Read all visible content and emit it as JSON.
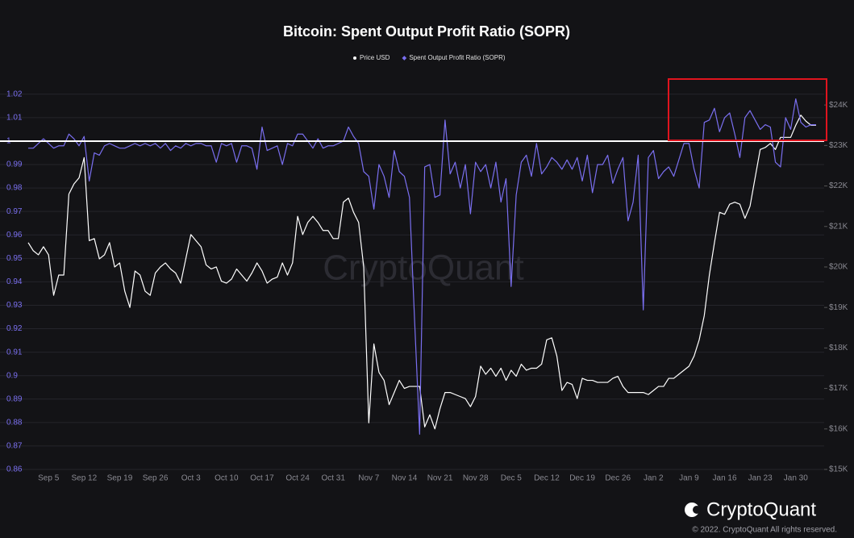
{
  "chart_data": {
    "type": "line",
    "title": "Bitcoin: Spent Output Profit Ratio (SOPR)",
    "watermark": "CryptoQuant",
    "brand": "CryptoQuant",
    "copyright": "© 2022. CryptoQuant All rights reserved.",
    "categories": [
      null,
      null,
      null,
      null,
      "Sep 5",
      null,
      null,
      null,
      null,
      null,
      null,
      "Sep 12",
      null,
      null,
      null,
      null,
      null,
      null,
      "Sep 19",
      null,
      null,
      null,
      null,
      null,
      null,
      "Sep 26",
      null,
      null,
      null,
      null,
      null,
      null,
      "Oct 3",
      null,
      null,
      null,
      null,
      null,
      null,
      "Oct 10",
      null,
      null,
      null,
      null,
      null,
      null,
      "Oct 17",
      null,
      null,
      null,
      null,
      null,
      null,
      "Oct 24",
      null,
      null,
      null,
      null,
      null,
      null,
      "Oct 31",
      null,
      null,
      null,
      null,
      null,
      null,
      "Nov 7",
      null,
      null,
      null,
      null,
      null,
      null,
      "Nov 14",
      null,
      null,
      null,
      null,
      null,
      null,
      "Nov 21",
      null,
      null,
      null,
      null,
      null,
      null,
      "Nov 28",
      null,
      null,
      null,
      null,
      null,
      null,
      "Dec 5",
      null,
      null,
      null,
      null,
      null,
      null,
      "Dec 12",
      null,
      null,
      null,
      null,
      null,
      null,
      "Dec 19",
      null,
      null,
      null,
      null,
      null,
      null,
      "Dec 26",
      null,
      null,
      null,
      null,
      null,
      null,
      "Jan 2",
      null,
      null,
      null,
      null,
      null,
      null,
      "Jan 9",
      null,
      null,
      null,
      null,
      null,
      null,
      "Jan 16",
      null,
      null,
      null,
      null,
      null,
      null,
      "Jan 23",
      null,
      null,
      null,
      null,
      null,
      null,
      "Jan 30",
      null,
      null,
      null,
      null
    ],
    "series": [
      {
        "name": "Price USD",
        "color": "#ffffff",
        "axis": "y2",
        "values": [
          20600,
          20400,
          20300,
          20500,
          20300,
          19300,
          19800,
          19800,
          21800,
          22050,
          22200,
          22700,
          20650,
          20700,
          20200,
          20300,
          20600,
          20000,
          20100,
          19400,
          19000,
          19900,
          19800,
          19400,
          19300,
          19850,
          20000,
          20100,
          19950,
          19850,
          19600,
          20200,
          20800,
          20650,
          20500,
          20050,
          19950,
          20000,
          19650,
          19600,
          19700,
          19950,
          19800,
          19650,
          19850,
          20100,
          19900,
          19600,
          19700,
          19750,
          20100,
          19800,
          20100,
          21250,
          20800,
          21100,
          21250,
          21100,
          20900,
          20900,
          20700,
          20700,
          21600,
          21700,
          21350,
          21100,
          20000,
          16150,
          18100,
          17400,
          17200,
          16600,
          16900,
          17200,
          17000,
          17050,
          17050,
          17050,
          16050,
          16350,
          16000,
          16500,
          16900,
          16900,
          16850,
          16800,
          16750,
          16550,
          16800,
          17550,
          17350,
          17500,
          17300,
          17500,
          17200,
          17450,
          17300,
          17600,
          17450,
          17500,
          17500,
          17600,
          18200,
          18250,
          17800,
          16950,
          17150,
          17100,
          16750,
          17250,
          17200,
          17200,
          17150,
          17150,
          17150,
          17250,
          17300,
          17050,
          16900,
          16900,
          16900,
          16900,
          16850,
          16950,
          17050,
          17050,
          17250,
          17250,
          17350,
          17450,
          17550,
          17800,
          18200,
          18800,
          19800,
          20600,
          21350,
          21300,
          21550,
          21600,
          21550,
          21200,
          21500,
          22200,
          22900,
          22950,
          23050,
          22900,
          23200,
          23200,
          23200,
          23500,
          23750,
          23600,
          23500,
          23500
        ]
      },
      {
        "name": "Spent Output Profit Ratio (SOPR)",
        "color": "#7a6ff0",
        "values": [
          0.997,
          0.997,
          0.999,
          1.001,
          0.999,
          0.997,
          0.998,
          0.998,
          1.003,
          1.001,
          0.998,
          1.002,
          0.983,
          0.995,
          0.994,
          0.998,
          0.999,
          0.998,
          0.997,
          0.997,
          0.998,
          0.999,
          0.998,
          0.999,
          0.998,
          0.999,
          0.997,
          0.999,
          0.996,
          0.998,
          0.997,
          0.999,
          0.998,
          0.999,
          0.999,
          0.998,
          0.998,
          0.991,
          0.999,
          0.998,
          0.999,
          0.991,
          0.998,
          0.998,
          0.997,
          0.988,
          1.006,
          0.996,
          0.997,
          0.998,
          0.99,
          0.999,
          0.998,
          1.003,
          1.003,
          1.0,
          0.997,
          1.001,
          0.997,
          0.998,
          0.998,
          0.999,
          1.0,
          1.006,
          1.002,
          0.999,
          0.987,
          0.985,
          0.971,
          0.99,
          0.985,
          0.976,
          0.996,
          0.987,
          0.985,
          0.976,
          0.924,
          0.875,
          0.989,
          0.99,
          0.976,
          0.977,
          1.009,
          0.986,
          0.991,
          0.98,
          0.99,
          0.969,
          0.991,
          0.987,
          0.99,
          0.98,
          0.991,
          0.974,
          0.984,
          0.938,
          0.977,
          0.991,
          0.994,
          0.985,
          0.999,
          0.986,
          0.989,
          0.993,
          0.991,
          0.988,
          0.992,
          0.988,
          0.993,
          0.983,
          0.994,
          0.978,
          0.99,
          0.99,
          0.994,
          0.982,
          0.988,
          0.993,
          0.966,
          0.974,
          0.994,
          0.928,
          0.993,
          0.996,
          0.984,
          0.987,
          0.989,
          0.985,
          0.992,
          0.999,
          0.999,
          0.988,
          0.98,
          1.008,
          1.009,
          1.014,
          1.004,
          1.01,
          1.012,
          1.003,
          0.993,
          1.01,
          1.013,
          1.009,
          1.005,
          1.007,
          1.006,
          0.991,
          0.989,
          1.01,
          1.005,
          1.018,
          1.008,
          1.006,
          1.007,
          1.007
        ]
      }
    ],
    "hline": 1,
    "ylim": [
      0.86,
      1.0275
    ],
    "yticks": [
      0.86,
      0.87,
      0.88,
      0.89,
      0.9,
      0.91,
      0.92,
      0.93,
      0.94,
      0.95,
      0.96,
      0.97,
      0.98,
      0.99,
      1,
      1.01,
      1.02
    ],
    "y2lim": [
      15000,
      24700
    ],
    "y2ticks": [
      {
        "value": 15000,
        "label": "$15K"
      },
      {
        "value": 16000,
        "label": "$16K"
      },
      {
        "value": 17000,
        "label": "$17K"
      },
      {
        "value": 18000,
        "label": "$18K"
      },
      {
        "value": 19000,
        "label": "$19K"
      },
      {
        "value": 20000,
        "label": "$20K"
      },
      {
        "value": 21000,
        "label": "$21K"
      },
      {
        "value": 22000,
        "label": "$22K"
      },
      {
        "value": 23000,
        "label": "$23K"
      },
      {
        "value": 24000,
        "label": "$24K"
      }
    ],
    "grid": true
  }
}
